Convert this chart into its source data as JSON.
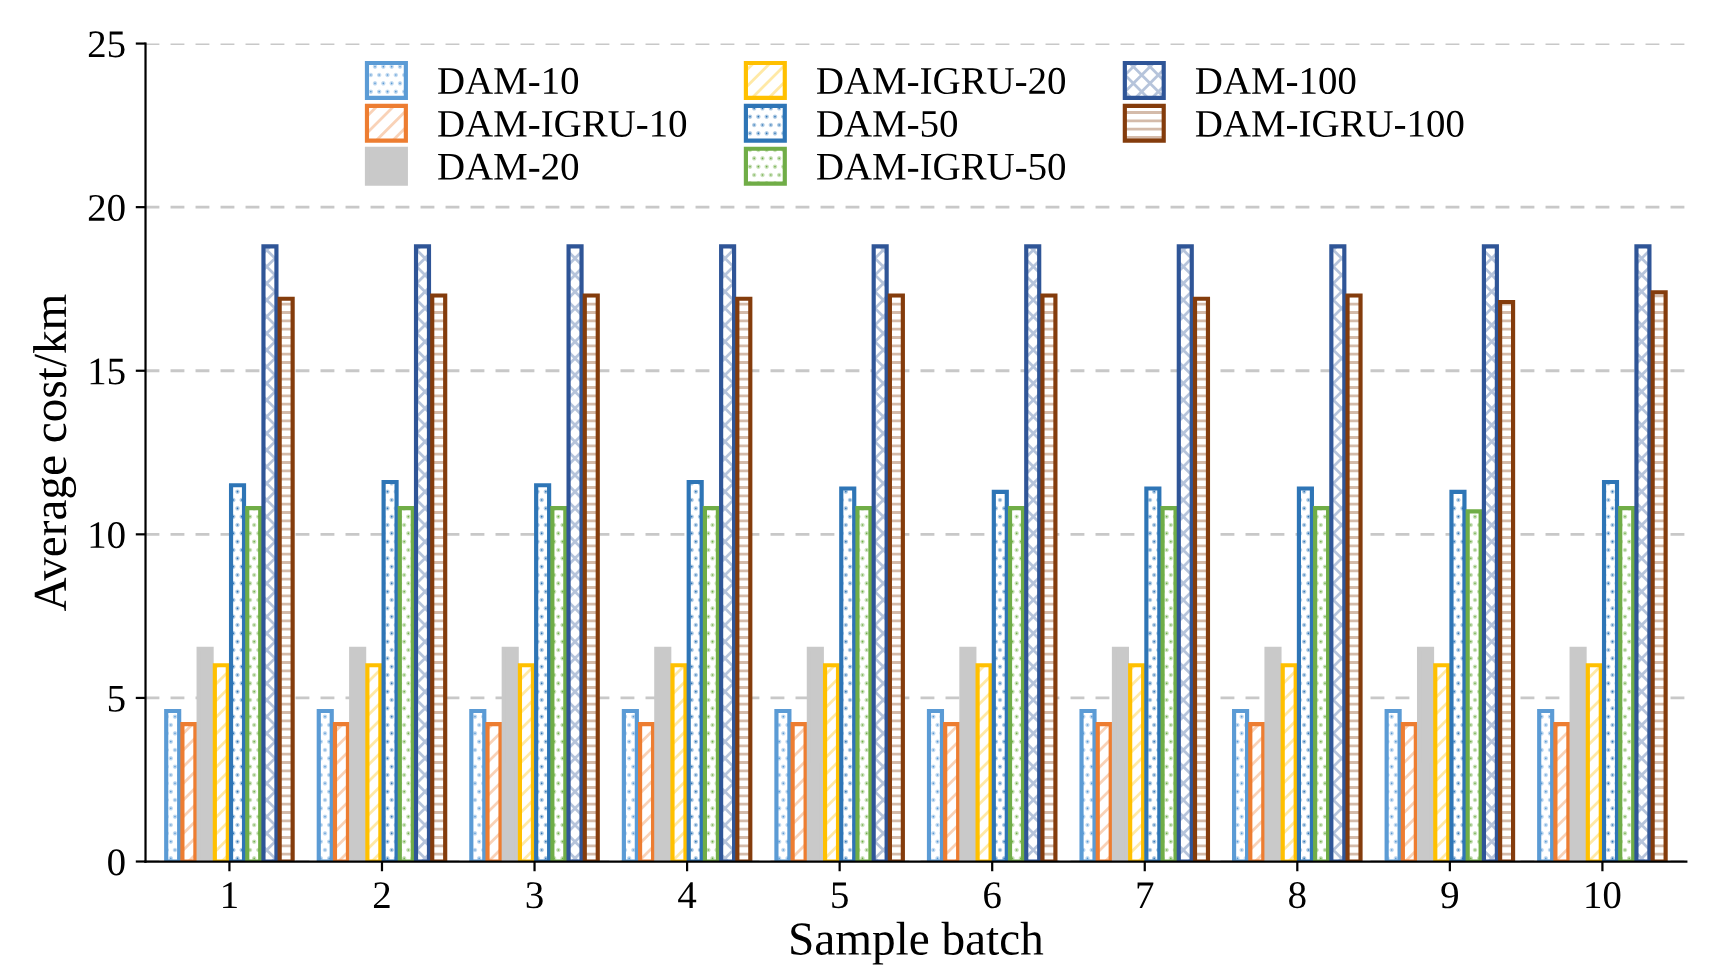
{
  "chart_data": {
    "type": "bar",
    "xlabel": "Sample batch",
    "ylabel": "Average cost/km",
    "categories": [
      "1",
      "2",
      "3",
      "4",
      "5",
      "6",
      "7",
      "8",
      "9",
      "10"
    ],
    "series": [
      {
        "name": "DAM-10",
        "color": "#5b9bd5",
        "values": [
          4.6,
          4.6,
          4.6,
          4.6,
          4.6,
          4.6,
          4.6,
          4.6,
          4.6,
          4.6
        ]
      },
      {
        "name": "DAM-IGRU-10",
        "color": "#ed7d31",
        "values": [
          4.2,
          4.2,
          4.2,
          4.2,
          4.2,
          4.2,
          4.2,
          4.2,
          4.2,
          4.2
        ]
      },
      {
        "name": "DAM-20",
        "color": "#c9c9c9",
        "values": [
          6.5,
          6.5,
          6.5,
          6.5,
          6.5,
          6.5,
          6.5,
          6.5,
          6.5,
          6.5
        ]
      },
      {
        "name": "DAM-IGRU-20",
        "color": "#ffc000",
        "values": [
          6.0,
          6.0,
          6.0,
          6.0,
          6.0,
          6.0,
          6.0,
          6.0,
          6.0,
          6.0
        ]
      },
      {
        "name": "DAM-50",
        "color": "#2e75b6",
        "values": [
          11.5,
          11.6,
          11.5,
          11.6,
          11.4,
          11.3,
          11.4,
          11.4,
          11.3,
          11.6
        ]
      },
      {
        "name": "DAM-IGRU-50",
        "color": "#70ad47",
        "values": [
          10.8,
          10.8,
          10.8,
          10.8,
          10.8,
          10.8,
          10.8,
          10.8,
          10.7,
          10.8
        ]
      },
      {
        "name": "DAM-100",
        "color": "#2f5597",
        "values": [
          18.8,
          18.8,
          18.8,
          18.8,
          18.8,
          18.8,
          18.8,
          18.8,
          18.8,
          18.8
        ]
      },
      {
        "name": "DAM-IGRU-100",
        "color": "#843c0c",
        "values": [
          17.2,
          17.3,
          17.3,
          17.2,
          17.3,
          17.3,
          17.2,
          17.3,
          17.1,
          17.4
        ]
      }
    ],
    "ylim": [
      0,
      25
    ],
    "yticks": [
      0,
      5,
      10,
      15,
      20,
      25
    ],
    "grid": "y",
    "legend": "top"
  }
}
